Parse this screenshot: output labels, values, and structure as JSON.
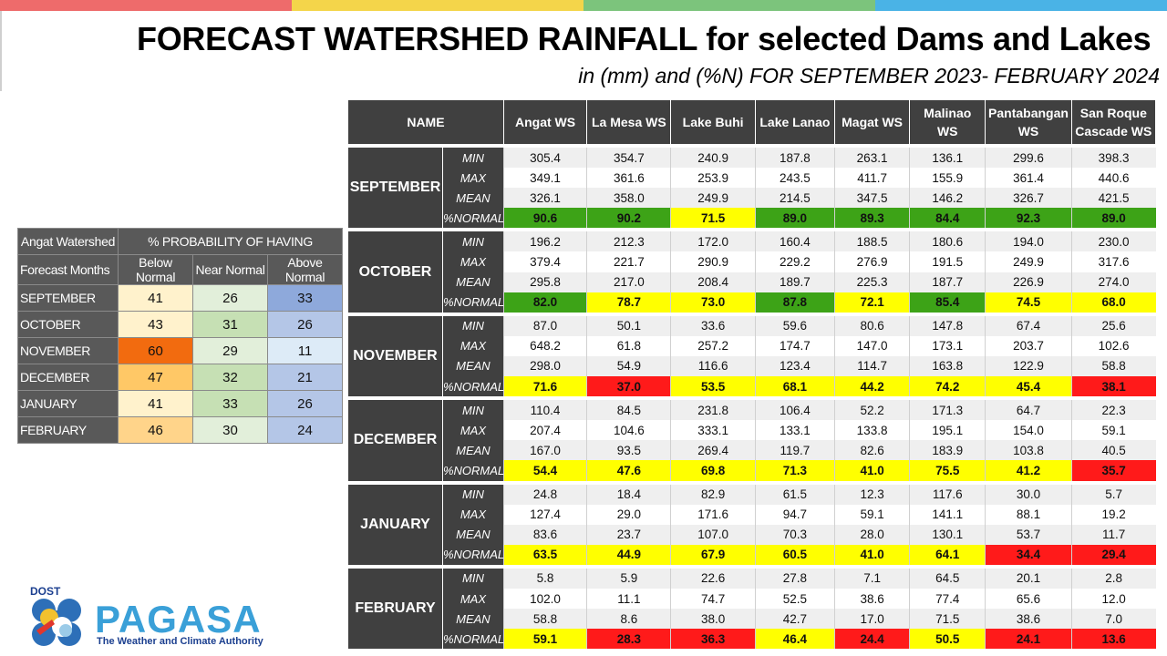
{
  "title": "FORECAST WATERSHED RAINFALL  for selected Dams and Lakes",
  "subtitle": "in (mm) and (%N) FOR SEPTEMBER 2023- FEBRUARY 2024",
  "colors": {
    "green": "#3da317",
    "yellow": "#ffff00",
    "red": "#ff1a1a",
    "header_dark": "#404040"
  },
  "topbar_colors": [
    "#ee6b6b",
    "#f4d54a",
    "#7cc47c",
    "#4ab3e6"
  ],
  "prob_table": {
    "title": "Angat Watershed",
    "group_header": "% PROBABILITY OF HAVING",
    "row_header": "Forecast Months",
    "columns": [
      "Below Normal",
      "Near Normal",
      "Above Normal"
    ],
    "rows": [
      {
        "month": "SEPTEMBER",
        "values": [
          "41",
          "26",
          "33"
        ],
        "colors": [
          "#fff2cc",
          "#e2efda",
          "#8ea9db"
        ]
      },
      {
        "month": "OCTOBER",
        "values": [
          "43",
          "31",
          "26"
        ],
        "colors": [
          "#fff2cc",
          "#c6e0b4",
          "#b4c6e7"
        ]
      },
      {
        "month": "NOVEMBER",
        "values": [
          "60",
          "29",
          "11"
        ],
        "colors": [
          "#f26b0f",
          "#e2efda",
          "#ddebf7"
        ]
      },
      {
        "month": "DECEMBER",
        "values": [
          "47",
          "32",
          "21"
        ],
        "colors": [
          "#ffc866",
          "#c6e0b4",
          "#b4c6e7"
        ]
      },
      {
        "month": "JANUARY",
        "values": [
          "41",
          "33",
          "26"
        ],
        "colors": [
          "#fff2cc",
          "#c6e0b4",
          "#b4c6e7"
        ]
      },
      {
        "month": "FEBRUARY",
        "values": [
          "46",
          "30",
          "24"
        ],
        "colors": [
          "#ffd48a",
          "#e2efda",
          "#b4c6e7"
        ]
      }
    ]
  },
  "main_table": {
    "name_header": "NAME",
    "stations": [
      "Angat WS",
      "La Mesa WS",
      "Lake Buhi",
      "Lake Lanao",
      "Magat WS",
      "Malinao WS",
      "Pantabangan WS",
      "San Roque Cascade WS"
    ],
    "stat_labels": [
      "MIN",
      "MAX",
      "MEAN",
      "%NORMAL"
    ],
    "months": [
      {
        "name": "SEPTEMBER",
        "min": [
          "305.4",
          "354.7",
          "240.9",
          "187.8",
          "263.1",
          "136.1",
          "299.6",
          "398.3"
        ],
        "max": [
          "349.1",
          "361.6",
          "253.9",
          "243.5",
          "411.7",
          "155.9",
          "361.4",
          "440.6"
        ],
        "mean": [
          "326.1",
          "358.0",
          "249.9",
          "214.5",
          "347.5",
          "146.2",
          "326.7",
          "421.5"
        ],
        "normal": [
          "90.6",
          "90.2",
          "71.5",
          "89.0",
          "89.3",
          "84.4",
          "92.3",
          "89.0"
        ],
        "normal_colors": [
          "green",
          "green",
          "yellow",
          "green",
          "green",
          "green",
          "green",
          "green"
        ]
      },
      {
        "name": "OCTOBER",
        "min": [
          "196.2",
          "212.3",
          "172.0",
          "160.4",
          "188.5",
          "180.6",
          "194.0",
          "230.0"
        ],
        "max": [
          "379.4",
          "221.7",
          "290.9",
          "229.2",
          "276.9",
          "191.5",
          "249.9",
          "317.6"
        ],
        "mean": [
          "295.8",
          "217.0",
          "208.4",
          "189.7",
          "225.3",
          "187.7",
          "226.9",
          "274.0"
        ],
        "normal": [
          "82.0",
          "78.7",
          "73.0",
          "87.8",
          "72.1",
          "85.4",
          "74.5",
          "68.0"
        ],
        "normal_colors": [
          "green",
          "yellow",
          "yellow",
          "green",
          "yellow",
          "green",
          "yellow",
          "yellow"
        ]
      },
      {
        "name": "NOVEMBER",
        "min": [
          "87.0",
          "50.1",
          "33.6",
          "59.6",
          "80.6",
          "147.8",
          "67.4",
          "25.6"
        ],
        "max": [
          "648.2",
          "61.8",
          "257.2",
          "174.7",
          "147.0",
          "173.1",
          "203.7",
          "102.6"
        ],
        "mean": [
          "298.0",
          "54.9",
          "116.6",
          "123.4",
          "114.7",
          "163.8",
          "122.9",
          "58.8"
        ],
        "normal": [
          "71.6",
          "37.0",
          "53.5",
          "68.1",
          "44.2",
          "74.2",
          "45.4",
          "38.1"
        ],
        "normal_colors": [
          "yellow",
          "red",
          "yellow",
          "yellow",
          "yellow",
          "yellow",
          "yellow",
          "red"
        ]
      },
      {
        "name": "DECEMBER",
        "min": [
          "110.4",
          "84.5",
          "231.8",
          "106.4",
          "52.2",
          "171.3",
          "64.7",
          "22.3"
        ],
        "max": [
          "207.4",
          "104.6",
          "333.1",
          "133.1",
          "133.8",
          "195.1",
          "154.0",
          "59.1"
        ],
        "mean": [
          "167.0",
          "93.5",
          "269.4",
          "119.7",
          "82.6",
          "183.9",
          "103.8",
          "40.5"
        ],
        "normal": [
          "54.4",
          "47.6",
          "69.8",
          "71.3",
          "41.0",
          "75.5",
          "41.2",
          "35.7"
        ],
        "normal_colors": [
          "yellow",
          "yellow",
          "yellow",
          "yellow",
          "yellow",
          "yellow",
          "yellow",
          "red"
        ]
      },
      {
        "name": "JANUARY",
        "min": [
          "24.8",
          "18.4",
          "82.9",
          "61.5",
          "12.3",
          "117.6",
          "30.0",
          "5.7"
        ],
        "max": [
          "127.4",
          "29.0",
          "171.6",
          "94.7",
          "59.1",
          "141.1",
          "88.1",
          "19.2"
        ],
        "mean": [
          "83.6",
          "23.7",
          "107.0",
          "70.3",
          "28.0",
          "130.1",
          "53.7",
          "11.7"
        ],
        "normal": [
          "63.5",
          "44.9",
          "67.9",
          "60.5",
          "41.0",
          "64.1",
          "34.4",
          "29.4"
        ],
        "normal_colors": [
          "yellow",
          "yellow",
          "yellow",
          "yellow",
          "yellow",
          "yellow",
          "red",
          "red"
        ]
      },
      {
        "name": "FEBRUARY",
        "min": [
          "5.8",
          "5.9",
          "22.6",
          "27.8",
          "7.1",
          "64.5",
          "20.1",
          "2.8"
        ],
        "max": [
          "102.0",
          "11.1",
          "74.7",
          "52.5",
          "38.6",
          "77.4",
          "65.6",
          "12.0"
        ],
        "mean": [
          "58.8",
          "8.6",
          "38.0",
          "42.7",
          "17.0",
          "71.5",
          "38.6",
          "7.0"
        ],
        "normal": [
          "59.1",
          "28.3",
          "36.3",
          "46.4",
          "24.4",
          "50.5",
          "24.1",
          "13.6"
        ],
        "normal_colors": [
          "yellow",
          "red",
          "red",
          "yellow",
          "red",
          "yellow",
          "red",
          "red"
        ]
      }
    ]
  },
  "logo": {
    "dost": "DOST",
    "name": "PAGASA",
    "tagline": "The Weather and Climate Authority"
  }
}
